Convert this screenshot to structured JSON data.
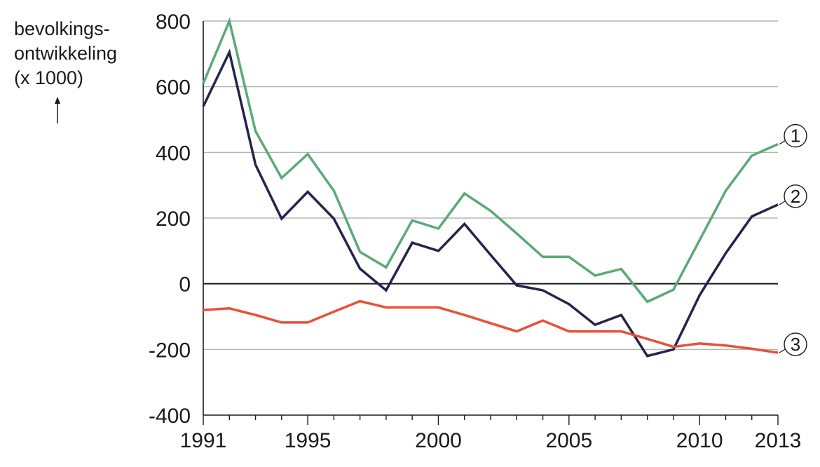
{
  "chart_data": {
    "type": "line",
    "ylabel_lines": [
      "bevolkings-",
      "ontwikkeling",
      "(x 1000)"
    ],
    "ylim": [
      -400,
      800
    ],
    "yticks": [
      800,
      600,
      400,
      200,
      0,
      -200,
      -400
    ],
    "ytick_labels": [
      "800",
      "600",
      "400",
      "200",
      "0",
      "-200",
      "-400"
    ],
    "xlim": [
      1991,
      2013
    ],
    "xticks": [
      1991,
      1995,
      2000,
      2005,
      2010,
      2013
    ],
    "xtick_labels": [
      "1991",
      "1995",
      "2000",
      "2005",
      "2010",
      "2013"
    ],
    "grid": true,
    "x": [
      1991,
      1992,
      1993,
      1994,
      1995,
      1996,
      1997,
      1998,
      1999,
      2000,
      2001,
      2002,
      2003,
      2004,
      2005,
      2006,
      2007,
      2008,
      2009,
      2010,
      2011,
      2012,
      2013
    ],
    "series": [
      {
        "marker": "1",
        "color": "#5aaa78",
        "values": [
          610,
          800,
          465,
          322,
          395,
          283,
          97,
          50,
          193,
          168,
          275,
          222,
          153,
          82,
          82,
          25,
          45,
          -55,
          -18,
          133,
          283,
          390,
          425
        ]
      },
      {
        "marker": "2",
        "color": "#22254a",
        "values": [
          540,
          705,
          363,
          198,
          280,
          198,
          46,
          -20,
          125,
          100,
          182,
          88,
          -5,
          -20,
          -62,
          -125,
          -95,
          -220,
          -200,
          -35,
          93,
          205,
          241
        ]
      },
      {
        "marker": "3",
        "color": "#e8503a",
        "values": [
          -80,
          -75,
          -95,
          -118,
          -118,
          -85,
          -53,
          -72,
          -72,
          -72,
          -95,
          -120,
          -145,
          -112,
          -145,
          -145,
          -145,
          -168,
          -192,
          -182,
          -188,
          -198,
          -210
        ]
      }
    ]
  }
}
